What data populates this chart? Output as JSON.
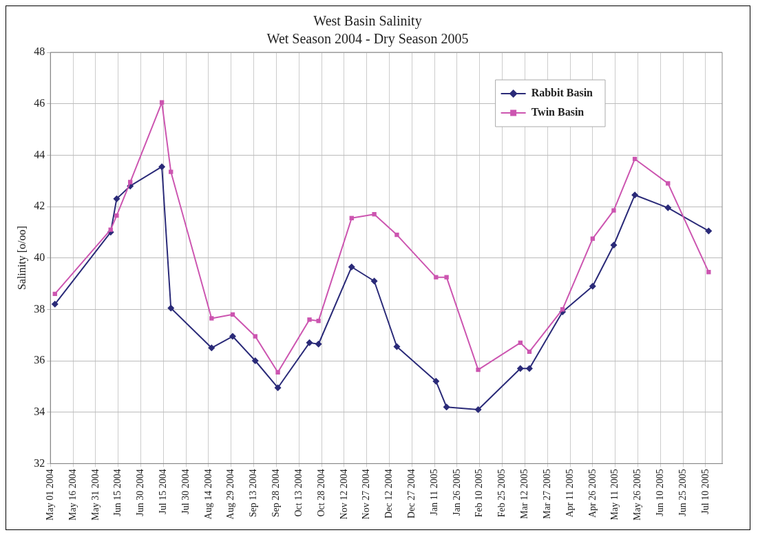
{
  "chart_data": {
    "type": "line",
    "title": "West Basin Salinity",
    "subtitle": "Wet Season 2004 - Dry Season 2005",
    "ylabel": "Salinity [o/oo]",
    "x": [
      "2004-05-04",
      "2004-06-10",
      "2004-06-14",
      "2004-06-23",
      "2004-07-14",
      "2004-07-20",
      "2004-08-16",
      "2004-08-30",
      "2004-09-14",
      "2004-09-29",
      "2004-10-20",
      "2004-10-26",
      "2004-11-17",
      "2004-12-02",
      "2004-12-17",
      "2005-01-12",
      "2005-01-19",
      "2005-02-09",
      "2005-03-09",
      "2005-03-15",
      "2005-04-06",
      "2005-04-26",
      "2005-05-10",
      "2005-05-24",
      "2005-06-15",
      "2005-07-12"
    ],
    "series": [
      {
        "name": "Rabbit Basin",
        "color": "#2a2a78",
        "marker": "diamond",
        "values": [
          38.2,
          41.0,
          42.3,
          42.8,
          43.55,
          38.05,
          36.5,
          36.95,
          36.0,
          34.95,
          36.7,
          36.65,
          39.65,
          39.1,
          36.55,
          35.2,
          34.2,
          34.1,
          35.7,
          35.7,
          37.9,
          38.9,
          40.5,
          42.45,
          41.95,
          41.05
        ]
      },
      {
        "name": "Twin Basin",
        "color": "#cc55b0",
        "marker": "square",
        "values": [
          38.6,
          41.1,
          41.65,
          42.95,
          46.05,
          43.35,
          37.65,
          37.8,
          36.95,
          35.55,
          37.6,
          37.55,
          41.55,
          41.7,
          40.9,
          39.25,
          39.25,
          35.65,
          36.7,
          36.35,
          38.0,
          40.75,
          41.85,
          43.85,
          42.9,
          39.45
        ]
      }
    ],
    "xlim": [
      "2004-05-01",
      "2005-07-21"
    ],
    "xticks": [
      {
        "value": "2004-05-01",
        "label": "May 01 2004"
      },
      {
        "value": "2004-05-16",
        "label": "May 16 2004"
      },
      {
        "value": "2004-05-31",
        "label": "May 31 2004"
      },
      {
        "value": "2004-06-15",
        "label": "Jun 15 2004"
      },
      {
        "value": "2004-06-30",
        "label": "Jun 30 2004"
      },
      {
        "value": "2004-07-15",
        "label": "Jul 15 2004"
      },
      {
        "value": "2004-07-30",
        "label": "Jul 30 2004"
      },
      {
        "value": "2004-08-14",
        "label": "Aug 14 2004"
      },
      {
        "value": "2004-08-29",
        "label": "Aug 29 2004"
      },
      {
        "value": "2004-09-13",
        "label": "Sep 13 2004"
      },
      {
        "value": "2004-09-28",
        "label": "Sep 28 2004"
      },
      {
        "value": "2004-10-13",
        "label": "Oct 13 2004"
      },
      {
        "value": "2004-10-28",
        "label": "Oct 28 2004"
      },
      {
        "value": "2004-11-12",
        "label": "Nov 12 2004"
      },
      {
        "value": "2004-11-27",
        "label": "Nov 27 2004"
      },
      {
        "value": "2004-12-12",
        "label": "Dec 12 2004"
      },
      {
        "value": "2004-12-27",
        "label": "Dec 27 2004"
      },
      {
        "value": "2005-01-11",
        "label": "Jan 11 2005"
      },
      {
        "value": "2005-01-26",
        "label": "Jan 26 2005"
      },
      {
        "value": "2005-02-10",
        "label": "Feb 10 2005"
      },
      {
        "value": "2005-02-25",
        "label": "Feb 25 2005"
      },
      {
        "value": "2005-03-12",
        "label": "Mar 12 2005"
      },
      {
        "value": "2005-03-27",
        "label": "Mar 27 2005"
      },
      {
        "value": "2005-04-11",
        "label": "Apr 11 2005"
      },
      {
        "value": "2005-04-26",
        "label": "Apr 26 2005"
      },
      {
        "value": "2005-05-11",
        "label": "May 11 2005"
      },
      {
        "value": "2005-05-26",
        "label": "May 26 2005"
      },
      {
        "value": "2005-06-10",
        "label": "Jun 10 2005"
      },
      {
        "value": "2005-06-25",
        "label": "Jun 25 2005"
      },
      {
        "value": "2005-07-10",
        "label": "Jul 10 2005"
      }
    ],
    "ylim": [
      32,
      48
    ],
    "yticks": [
      32,
      34,
      36,
      38,
      40,
      42,
      44,
      46,
      48
    ],
    "grid": true,
    "legend": "top right",
    "line_style": "solid"
  }
}
